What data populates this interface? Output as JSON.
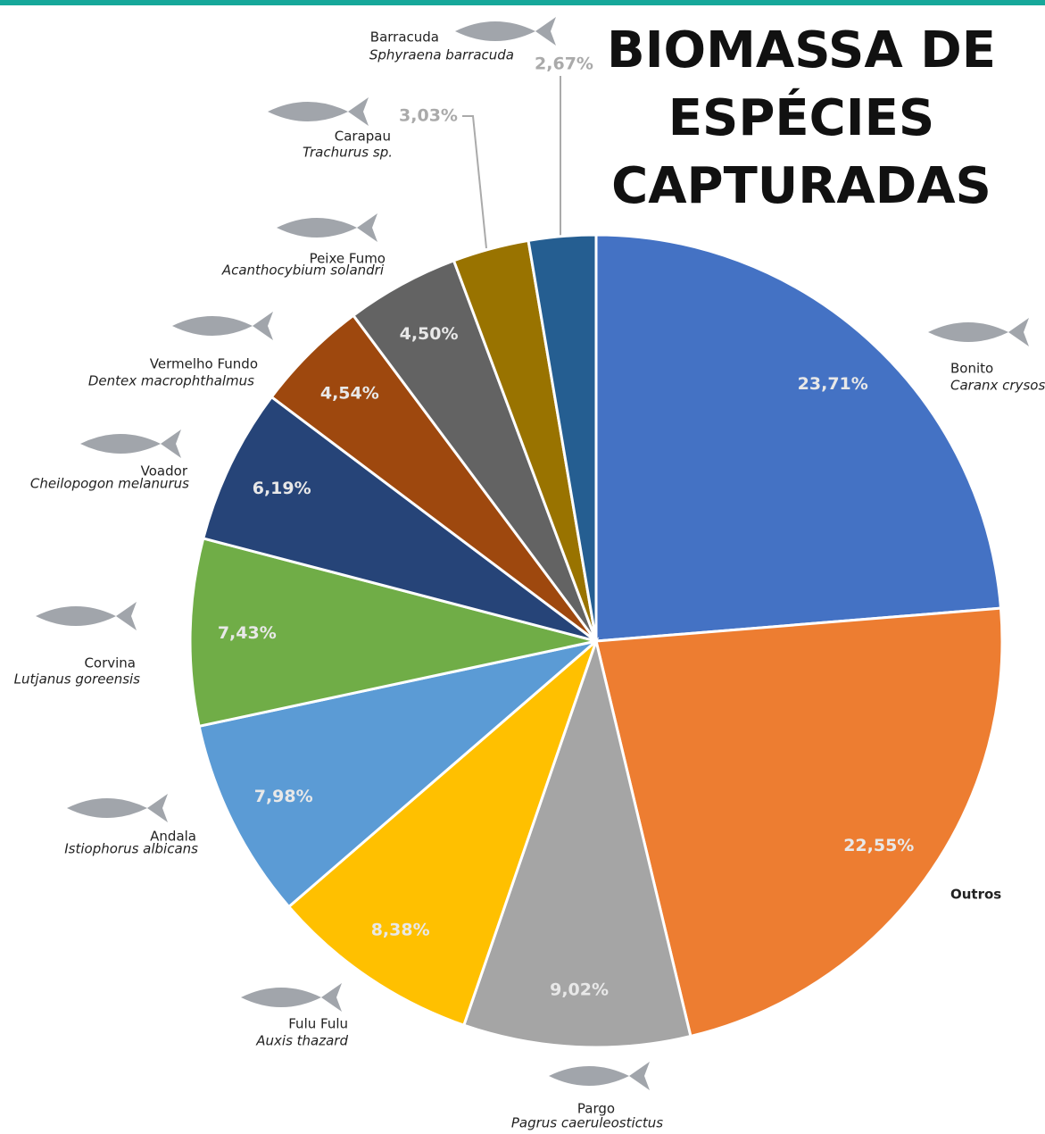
{
  "chart_data": {
    "type": "pie",
    "title_lines": [
      "BIOMASSA DE",
      "ESPÉCIES",
      "CAPTURADAS"
    ],
    "categories": [
      "Bonito",
      "Outros",
      "Pargo",
      "Fulu Fulu",
      "Andala",
      "Corvina",
      "Voador",
      "Vermelho Fundo",
      "Peixe Fumo",
      "Carapau",
      "Barracuda"
    ],
    "scientific_names": [
      "Caranx crysos",
      null,
      "Pagrus caeruleostictus",
      "Auxis thazard",
      "Istiophorus albicans",
      "Lutjanus goreensis",
      "Cheilopogon melanurus",
      "Dentex macrophthalmus",
      "Acanthocybium solandri",
      "Trachurus sp.",
      "Sphyraena barracuda"
    ],
    "values": [
      23.71,
      22.55,
      9.02,
      8.38,
      7.98,
      7.43,
      6.19,
      4.54,
      4.5,
      3.03,
      2.67
    ],
    "value_labels": [
      "23,71%",
      "22,55%",
      "9,02%",
      "8,38%",
      "7,98%",
      "7,43%",
      "6,19%",
      "4,54%",
      "4,50%",
      "3,03%",
      "2,67%"
    ],
    "colors": [
      "#4472c4",
      "#ed7d31",
      "#a5a5a5",
      "#ffc000",
      "#5b9bd5",
      "#70ad47",
      "#264478",
      "#9e480e",
      "#636363",
      "#997300",
      "#255e91"
    ]
  }
}
